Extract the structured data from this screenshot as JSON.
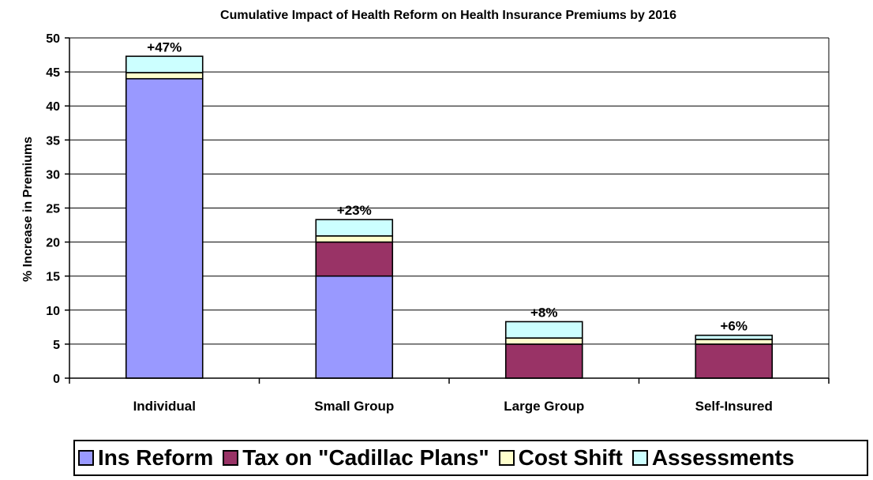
{
  "chart_data": {
    "type": "bar",
    "stacked": true,
    "title": "Cumulative Impact of Health Reform on Health Insurance Premiums by 2016",
    "ylabel": "% Increase in Premiums",
    "xlabel": "",
    "ylim": [
      0,
      50
    ],
    "yticks": [
      0,
      5,
      10,
      15,
      20,
      25,
      30,
      35,
      40,
      45,
      50
    ],
    "grid": true,
    "legend_position": "bottom",
    "categories": [
      "Individual",
      "Small Group",
      "Large Group",
      "Self-Insured"
    ],
    "totals": [
      "+47%",
      "+23%",
      "+8%",
      "+6%"
    ],
    "series": [
      {
        "name": "Ins Reform",
        "color": "#9999FF",
        "values": [
          44,
          15,
          0,
          0
        ]
      },
      {
        "name": "Tax on \"Cadillac Plans\"",
        "color": "#993366",
        "values": [
          0,
          5,
          5,
          5
        ]
      },
      {
        "name": "Cost Shift",
        "color": "#FFFFCC",
        "values": [
          0.9,
          0.9,
          0.9,
          0.7
        ]
      },
      {
        "name": "Assessments",
        "color": "#CCFFFF",
        "values": [
          2.4,
          2.4,
          2.4,
          0.6
        ]
      }
    ]
  }
}
